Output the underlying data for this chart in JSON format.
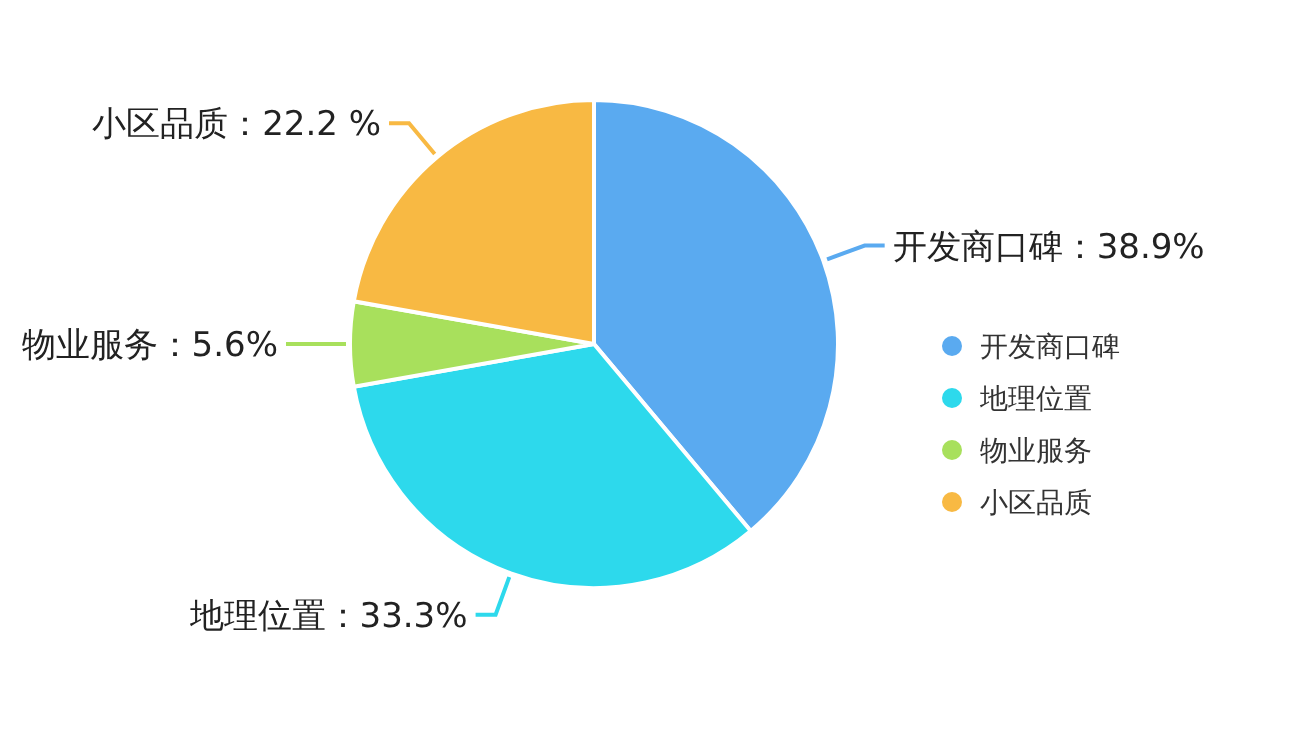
{
  "chart_data": {
    "type": "pie",
    "categories": [
      "开发商口碑",
      "地理位置",
      "物业服务",
      "小区品质"
    ],
    "values": [
      38.9,
      33.3,
      5.6,
      22.2
    ],
    "value_labels": [
      "开发商口碑：38.9%",
      "地理位置：33.3%",
      "物业服务：5.6%",
      "小区品质：22.2 %"
    ],
    "colors": [
      "#5aaaf0",
      "#2dd9ec",
      "#a8e05c",
      "#f8b943"
    ],
    "legend": "right"
  }
}
